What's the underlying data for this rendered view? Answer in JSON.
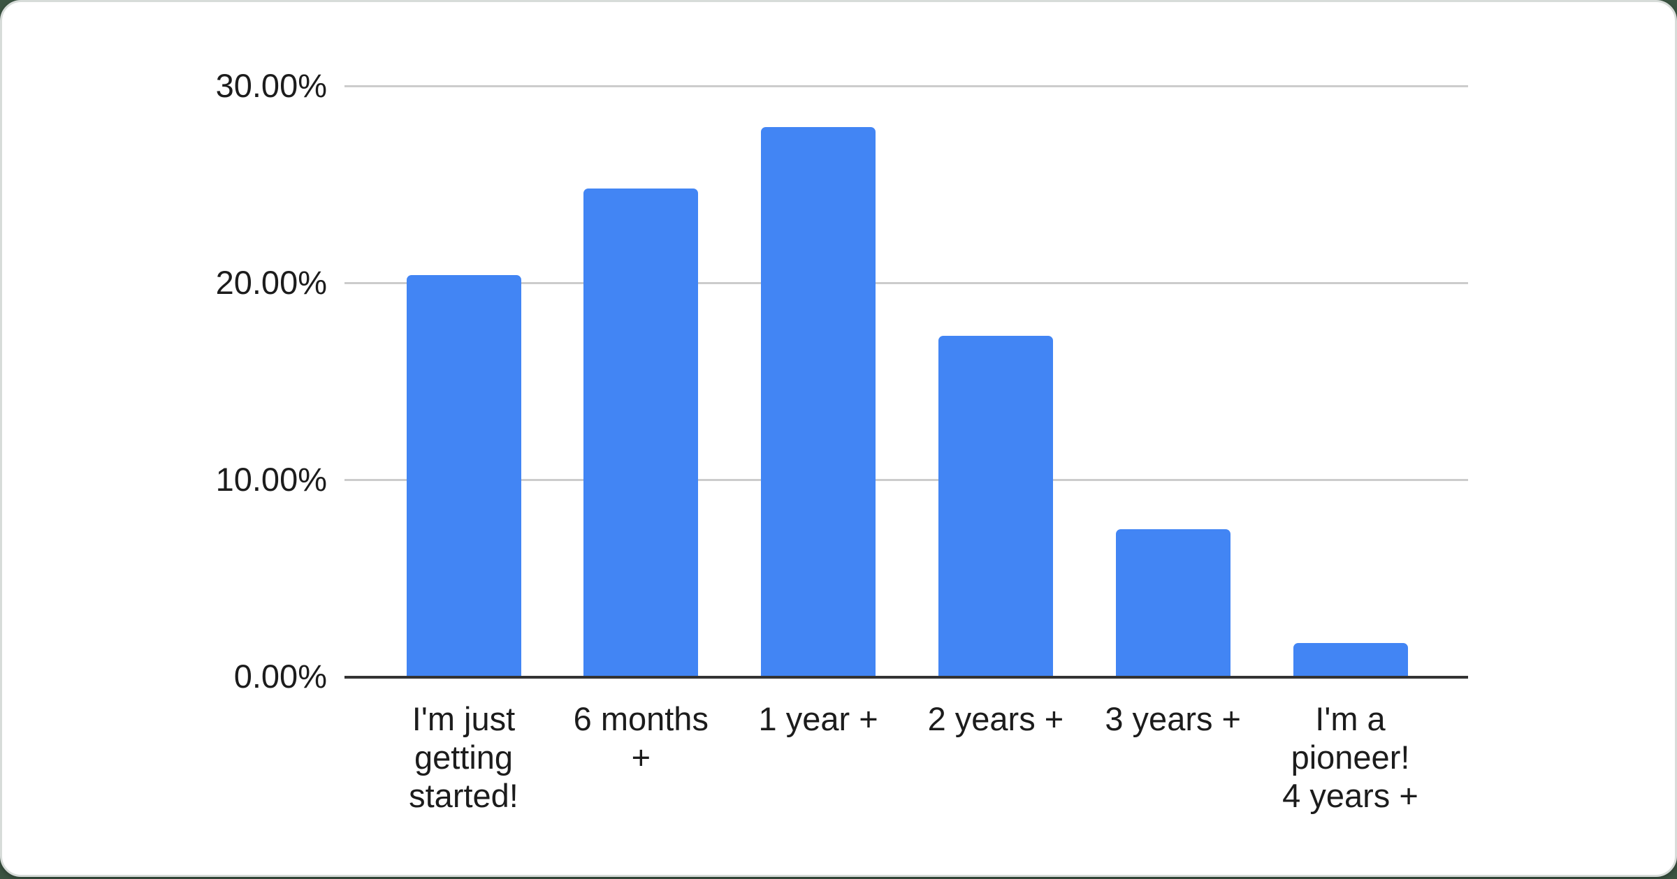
{
  "chart_data": {
    "type": "bar",
    "title": "",
    "xlabel": "",
    "ylabel": "",
    "unit": "%",
    "categories": [
      "I'm just getting started!",
      "6 months +",
      "1 year +",
      "2 years +",
      "3 years +",
      "I'm a pioneer! 4 years +"
    ],
    "category_lines": [
      [
        "I'm just",
        "getting",
        "started!"
      ],
      [
        "6 months",
        "+"
      ],
      [
        "1 year +"
      ],
      [
        "2 years +"
      ],
      [
        "3 years +"
      ],
      [
        "I'm a",
        "pioneer!",
        "4 years +"
      ]
    ],
    "values": [
      20.4,
      24.8,
      27.9,
      17.3,
      7.5,
      1.7
    ],
    "ylim": [
      0,
      30
    ],
    "ytick_values": [
      0,
      10,
      20,
      30
    ],
    "yticks": [
      "0.00%",
      "10.00%",
      "20.00%",
      "30.00%"
    ],
    "grid": true,
    "legend": "none",
    "colors": {
      "bar": "#4285f4",
      "gridline": "#cccccc",
      "baseline": "#333333",
      "label": "#1c1c1c",
      "card_background": "#ffffff",
      "page_background": "#3b5442"
    }
  }
}
